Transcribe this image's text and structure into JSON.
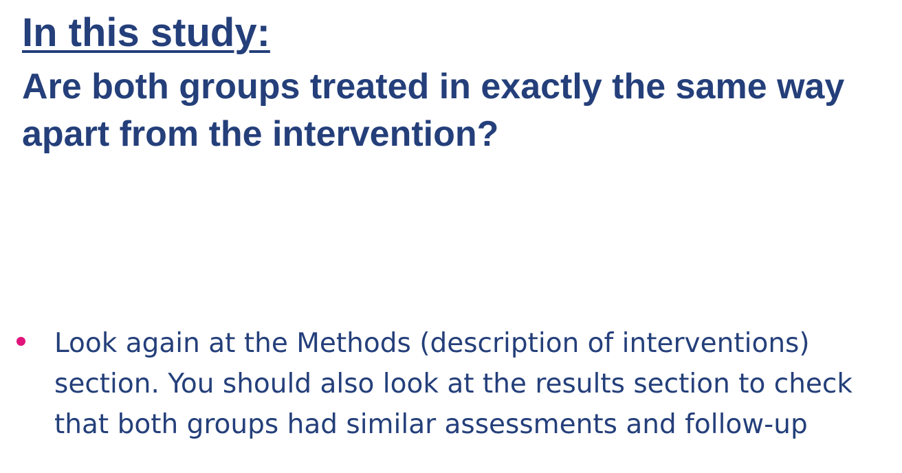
{
  "slide": {
    "heading": "In this study:",
    "question": "Are both groups treated in exactly the same way apart from the intervention?",
    "bullets": [
      {
        "text": "Look again at the Methods (description of interventions) section. You should also look at the results section to check that both groups had similar assessments and follow-up"
      }
    ]
  },
  "colors": {
    "text": "#243f7a",
    "bullet": "#e0147a",
    "background": "#ffffff"
  }
}
